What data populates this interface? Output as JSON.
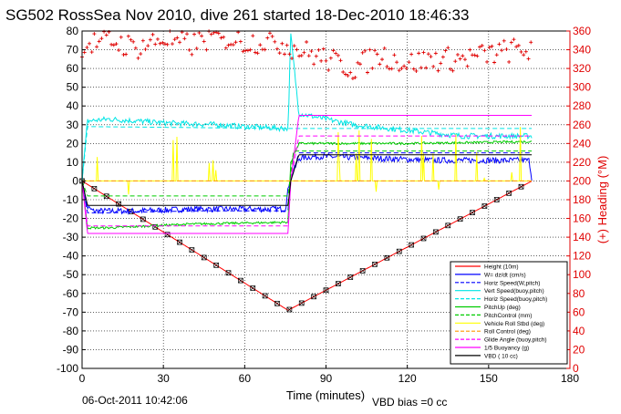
{
  "chart_data": {
    "type": "line",
    "title": "SG502 RossSea Nov 2010, dive 261 started 18-Dec-2010 18:46:33",
    "xlabel": "Time (minutes)",
    "ylabel_right": "(+) Heading (°M)",
    "xlim": [
      0,
      180
    ],
    "ylim": [
      -100,
      80
    ],
    "ylim_right": [
      0,
      360
    ],
    "x_ticks": [
      "0",
      "30",
      "60",
      "90",
      "120",
      "150",
      "180"
    ],
    "y_ticks": [
      "-100",
      "-90",
      "-80",
      "-70",
      "-60",
      "-50",
      "-40",
      "-30",
      "-20",
      "-10",
      "0",
      "10",
      "20",
      "30",
      "40",
      "50",
      "60",
      "70",
      "80"
    ],
    "y_ticks_right": [
      "0",
      "20",
      "40",
      "60",
      "80",
      "100",
      "120",
      "140",
      "160",
      "180",
      "200",
      "220",
      "240",
      "260",
      "280",
      "300",
      "320",
      "340",
      "360"
    ],
    "grid": true,
    "legend_position": "bottom-right",
    "footer_left": "06-Oct-2011 10:42:06",
    "footer_right": "VBD bias =0 cc",
    "colors": {
      "height": "#ff0000",
      "w": "#0000ff",
      "horiz": "#00e5e5",
      "pitch": "#00cc00",
      "roll": "#ffff00",
      "glide": "#ff00ff",
      "vbd": "#000000",
      "heading": "#e00000"
    },
    "series": [
      {
        "name": "Height (10m)",
        "color": "#ff0000",
        "style": "solid",
        "x": [
          0,
          76,
          166
        ],
        "y": [
          0,
          -69,
          0
        ],
        "markers": true
      },
      {
        "name": "W= dz/dt (cm/s)",
        "color": "#0000ff",
        "style": "solid",
        "x": [
          0,
          1,
          2,
          4,
          10,
          20,
          40,
          60,
          75,
          76.5,
          78,
          80,
          85,
          90,
          110,
          130,
          150,
          165,
          166
        ],
        "y": [
          0,
          -10,
          -14,
          -16,
          -16,
          -16,
          -15,
          -15,
          -15,
          0,
          5,
          12,
          13,
          13,
          12,
          11,
          11,
          11,
          0
        ],
        "noise": 1.6
      },
      {
        "name": "Horiz Speed(W,pitch)",
        "color": "#0000ff",
        "style": "dashed",
        "x": [
          0,
          2,
          10,
          40,
          76,
          77,
          80,
          120,
          166
        ],
        "y": [
          0,
          -17,
          -17,
          -16,
          -16,
          0,
          15,
          15,
          15
        ],
        "noise": 0
      },
      {
        "name": "Vert Speed(buoy,pitch)",
        "color": "#00e5e5",
        "style": "solid",
        "x": [
          0,
          2,
          10,
          30,
          50,
          60,
          76,
          77,
          80,
          100,
          120,
          140,
          166
        ],
        "y": [
          0,
          32,
          33,
          31,
          30,
          29,
          28,
          78,
          36,
          30,
          27,
          24,
          24
        ],
        "noise": 1.5
      },
      {
        "name": "Horiz Speed(buoy,pitch)",
        "color": "#00e5e5",
        "style": "dashed",
        "x": [
          0,
          2,
          76,
          78,
          166
        ],
        "y": [
          0,
          29,
          28,
          28,
          28
        ],
        "noise": 0
      },
      {
        "name": "PitchUp (deg)",
        "color": "#00cc00",
        "style": "solid",
        "x": [
          0,
          2,
          10,
          40,
          76,
          77,
          80,
          120,
          166
        ],
        "y": [
          0,
          -25,
          -25,
          -23,
          -22,
          10,
          20,
          20,
          21
        ],
        "noise": 0.6
      },
      {
        "name": "PitchControl (mm)",
        "color": "#00cc00",
        "style": "dashed",
        "x": [
          0,
          2,
          76,
          78,
          166
        ],
        "y": [
          0,
          -8,
          -8,
          16,
          16
        ],
        "noise": 0
      },
      {
        "name": "Vehicle Roll Stbd (deg)",
        "color": "#ffff00",
        "style": "solid",
        "x": [
          0,
          2,
          76,
          78,
          166
        ],
        "y": [
          0,
          0,
          0,
          0,
          0
        ],
        "spikes": true
      },
      {
        "name": "Roll Control (deg)",
        "color": "#ff9900",
        "style": "dashed",
        "x": [
          0,
          166
        ],
        "y": [
          0,
          0
        ],
        "noise": 0
      },
      {
        "name": "Glide Angle (buoy,pitch)",
        "color": "#ff00ff",
        "style": "dashed",
        "x": [
          0,
          2,
          76,
          77,
          80,
          166
        ],
        "y": [
          0,
          -24,
          -24,
          0,
          24,
          24
        ],
        "noise": 0
      },
      {
        "name": "1/5 Buoyancy (g)",
        "color": "#ff00ff",
        "style": "solid",
        "x": [
          0,
          2,
          76,
          77,
          80,
          166
        ],
        "y": [
          0,
          -28,
          -28,
          0,
          35,
          35
        ],
        "noise": 0
      },
      {
        "name": "VBD ( 10 cc)",
        "color": "#000000",
        "style": "solid",
        "x": [
          0,
          2,
          76,
          77,
          80,
          166
        ],
        "y": [
          0,
          -13,
          -13,
          0,
          14,
          14
        ],
        "noise": 0
      },
      {
        "name": "Heading (°M)",
        "axis": "right",
        "color": "#e00000",
        "style": "points",
        "x": [
          0,
          10,
          20,
          30,
          40,
          50,
          60,
          70,
          76,
          80,
          90,
          100,
          110,
          120,
          130,
          140,
          150,
          160,
          166
        ],
        "y": [
          345,
          350,
          342,
          352,
          345,
          355,
          348,
          350,
          345,
          340,
          330,
          320,
          335,
          325,
          330,
          330,
          335,
          340,
          340
        ],
        "in_legend": false
      }
    ]
  }
}
